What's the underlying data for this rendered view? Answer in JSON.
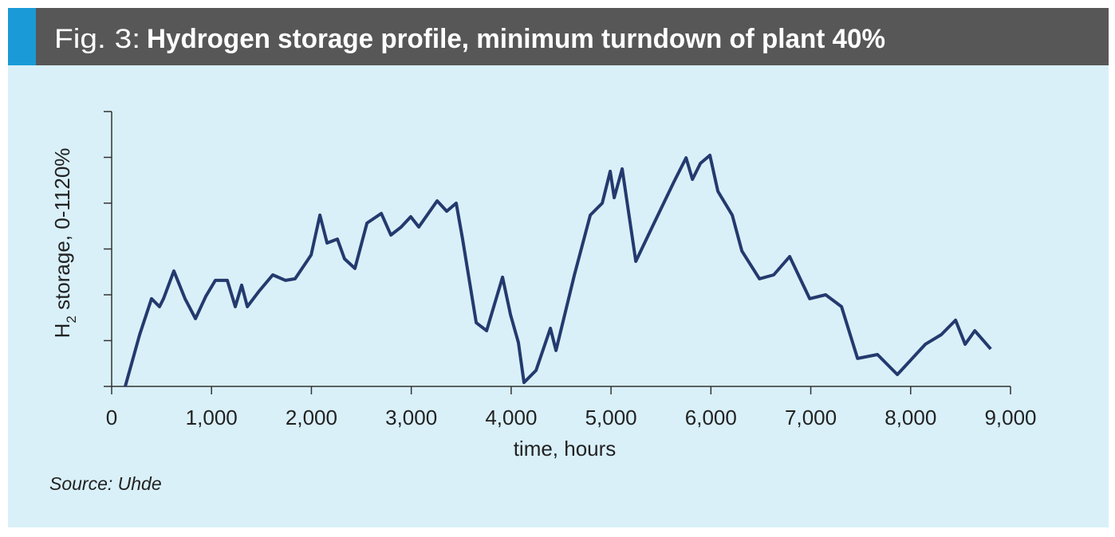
{
  "figure_label": "Fig. 3:",
  "chart_data": {
    "type": "line",
    "title": "Hydrogen storage profile, minimum turndown of plant 40%",
    "xlabel": "time, hours",
    "ylabel": [
      "H",
      "2",
      " storage, 0-1120%"
    ],
    "source": "Source: Uhde",
    "xlim": [
      0,
      9000
    ],
    "xticks": [
      0,
      {
        "value": 1000,
        "label": "1,000"
      },
      {
        "value": 2000,
        "label": "2,000"
      },
      {
        "value": 3000,
        "label": "3,000"
      },
      {
        "value": 4000,
        "label": "4,000"
      },
      {
        "value": 5000,
        "label": "5,000"
      },
      {
        "value": 6000,
        "label": "6,000"
      },
      {
        "value": 7000,
        "label": "7,000"
      },
      {
        "value": 8000,
        "label": "8,000"
      },
      {
        "value": 9000,
        "label": "9,000"
      }
    ],
    "ylim": [
      0,
      1200
    ],
    "yticks": [
      0,
      200,
      400,
      600,
      800,
      1000,
      1200
    ],
    "series": [
      {
        "color": "#243a6e",
        "x": [
          136,
          280,
          399,
          479,
          519,
          623,
          735,
          839,
          942,
          1038,
          1158,
          1238,
          1302,
          1358,
          1478,
          1613,
          1741,
          1837,
          1997,
          2085,
          2157,
          2260,
          2332,
          2436,
          2556,
          2700,
          2796,
          2899,
          2995,
          3075,
          3259,
          3355,
          3450,
          3514,
          3650,
          3754,
          3914,
          3994,
          4073,
          4129,
          4249,
          4393,
          4449,
          4633,
          4792,
          4912,
          4992,
          5032,
          5112,
          5248,
          5431,
          5631,
          5751,
          5815,
          5895,
          5990,
          6070,
          6214,
          6310,
          6486,
          6629,
          6789,
          6989,
          7149,
          7308,
          7468,
          7668,
          7867,
          8147,
          8307,
          8450,
          8546,
          8642,
          8802
        ],
        "values": [
          0,
          226,
          383,
          348,
          383,
          504,
          383,
          296,
          393,
          463,
          463,
          348,
          442,
          348,
          417,
          487,
          463,
          470,
          574,
          748,
          626,
          643,
          557,
          515,
          713,
          755,
          661,
          696,
          741,
          696,
          810,
          765,
          800,
          643,
          278,
          243,
          477,
          313,
          191,
          17,
          70,
          254,
          157,
          487,
          748,
          800,
          939,
          824,
          950,
          546,
          713,
          894,
          998,
          904,
          974,
          1009,
          852,
          748,
          591,
          470,
          487,
          567,
          383,
          400,
          348,
          122,
          139,
          52,
          184,
          226,
          289,
          184,
          243,
          163
        ]
      }
    ]
  }
}
